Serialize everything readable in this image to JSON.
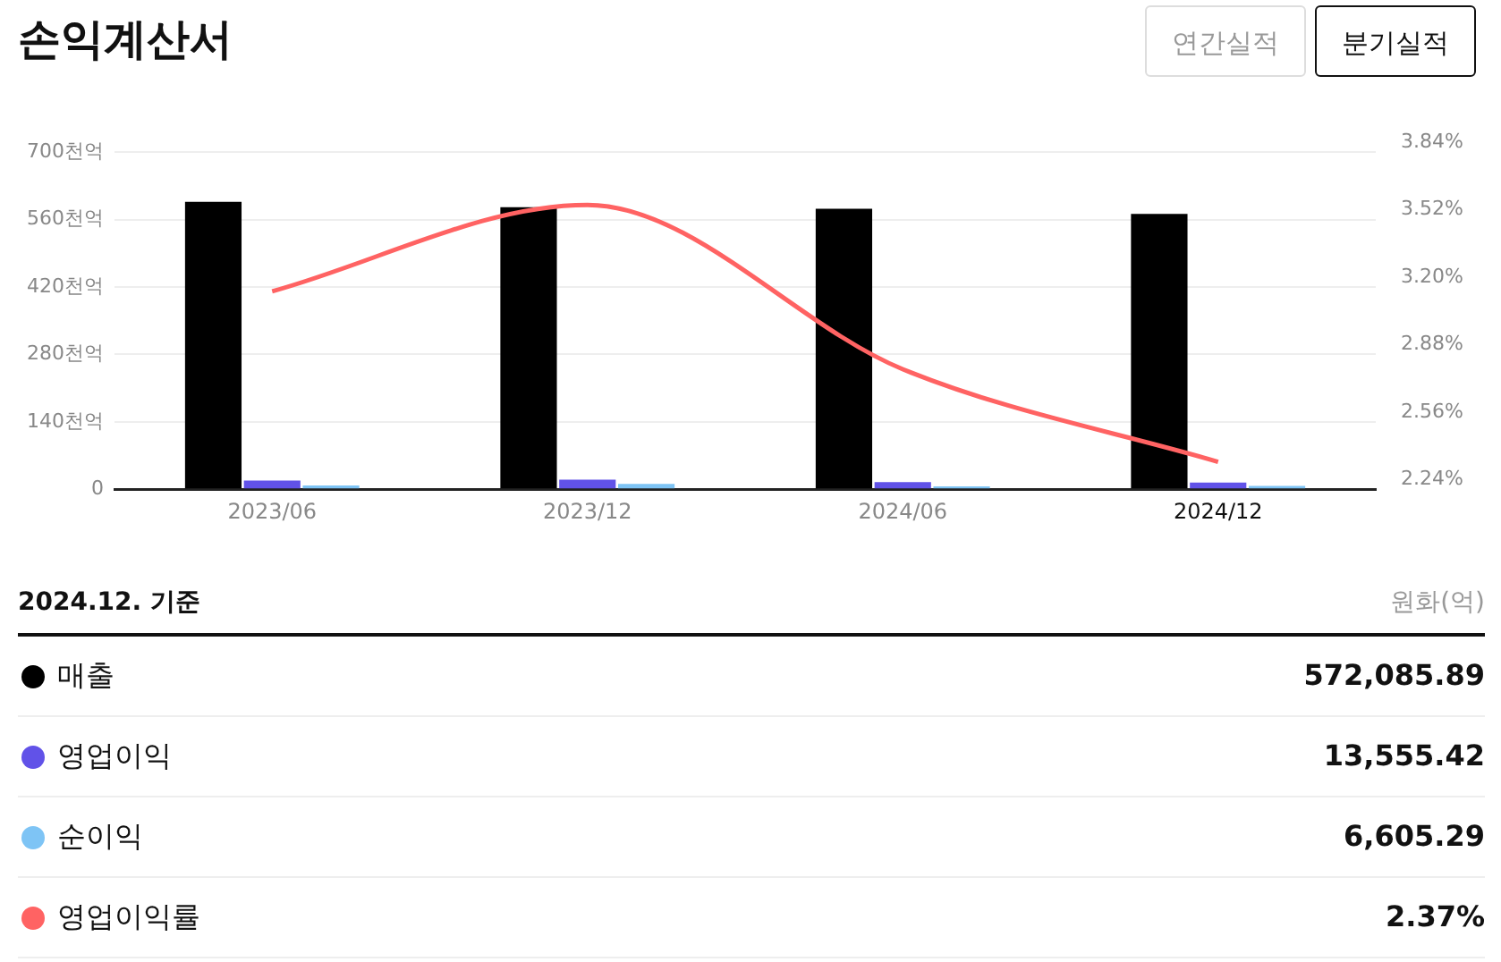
{
  "chart_data": {
    "type": "bar",
    "title": "손익계산서",
    "categories": [
      "2023/06",
      "2023/12",
      "2024/06",
      "2024/12"
    ],
    "series": [
      {
        "name": "매출",
        "color": "#000000",
        "values": [
          597,
          586,
          583,
          572
        ]
      },
      {
        "name": "영업이익",
        "color": "#6152e8",
        "values": [
          18,
          20,
          15,
          14
        ]
      },
      {
        "name": "순이익",
        "color": "#7ec4f5",
        "values": [
          8,
          11,
          6,
          7
        ]
      },
      {
        "name": "영업이익률",
        "type": "line",
        "axis": "y2",
        "color": "#ff6363",
        "values": [
          3.18,
          3.59,
          2.81,
          2.37
        ]
      }
    ],
    "ylim": [
      0,
      700
    ],
    "yticks": [
      0,
      {
        "value": 140,
        "label": "140천억"
      },
      {
        "value": 280,
        "label": "280천억"
      },
      {
        "value": 420,
        "label": "420천억"
      },
      {
        "value": 560,
        "label": "560천억"
      },
      {
        "value": 700,
        "label": "700천억"
      }
    ],
    "y2lim": [
      2.24,
      3.84
    ],
    "y2ticks": [
      {
        "value": 2.24,
        "label": "2.24%"
      },
      {
        "value": 2.56,
        "label": "2.56%"
      },
      {
        "value": 2.88,
        "label": "2.88%"
      },
      {
        "value": 3.2,
        "label": "3.20%"
      },
      {
        "value": 3.52,
        "label": "3.52%"
      },
      {
        "value": 3.84,
        "label": "3.84%"
      }
    ],
    "grid": "y",
    "legend": "bottom",
    "marker": "none",
    "annotations": [
      "연간실적",
      "분기실적",
      "2024.12. 기준",
      "원화(억)",
      "572,085.89",
      "13,555.42",
      "6,605.29",
      "2.37%"
    ]
  }
}
